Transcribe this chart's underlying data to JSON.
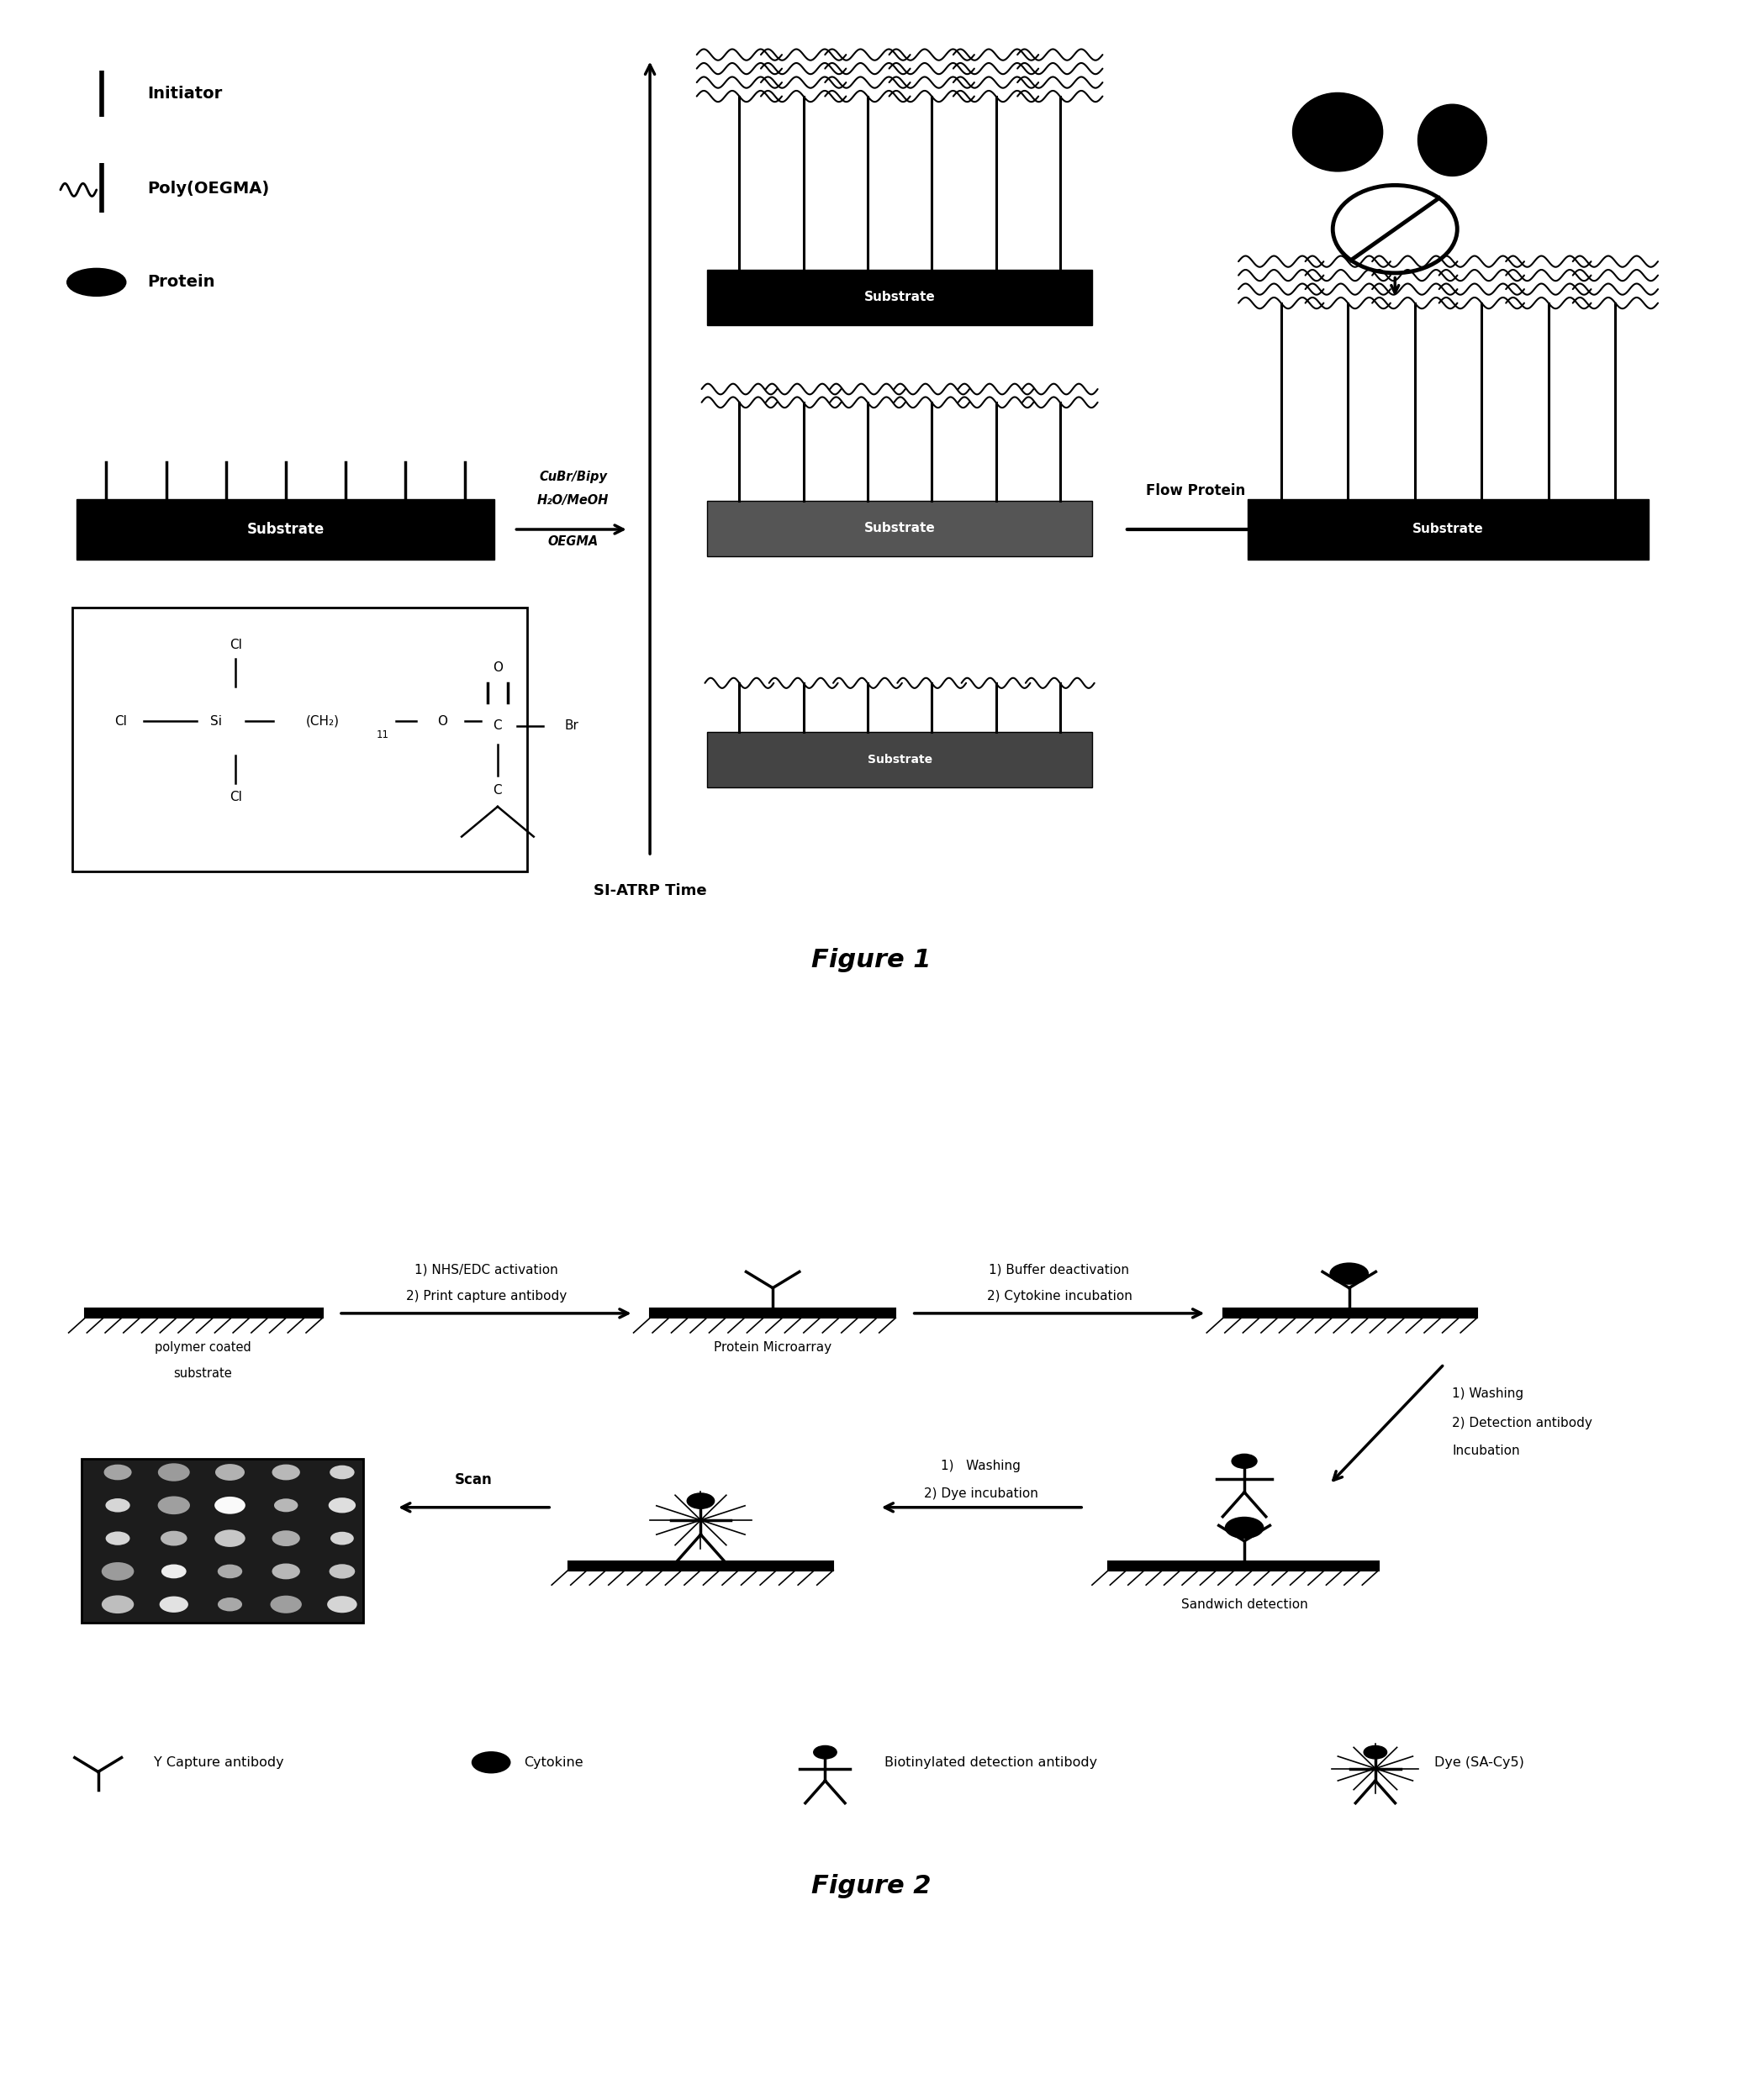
{
  "fig1_title": "Figure 1",
  "fig2_title": "Figure 2",
  "fig1_si_atrp": "SI-ATRP Time",
  "fig1_flow_protein": "Flow Protein",
  "fig1_reagents_line1": "CuBr/Bipy",
  "fig1_reagents_line2": "H₂O/MeOH",
  "fig1_reagents_line3": "OEGMA",
  "fig1_legend_initiator": "Initiator",
  "fig1_legend_poly": "Poly(OEGMA)",
  "fig1_legend_protein": "Protein",
  "fig2_arrow1_line1": "1) NHS/EDC activation",
  "fig2_arrow1_line2": "2) Print capture antibody",
  "fig2_arrow2_line1": "1) Buffer deactivation",
  "fig2_arrow2_line2": "2) Cytokine incubation",
  "fig2_diag_line1": "1) Washing",
  "fig2_diag_line2": "2) Detection antibody",
  "fig2_diag_line3": "Incubation",
  "fig2_arrow3_line1": "1)   Washing",
  "fig2_arrow3_line2": "2) Dye incubation",
  "fig2_scan": "Scan",
  "fig2_polymer_label1": "polymer coated",
  "fig2_polymer_label2": "substrate",
  "fig2_microarray_label": "Protein Microarray",
  "fig2_sandwich_label": "Sandwich detection",
  "fig2_legend_capture": "Y Capture antibody",
  "fig2_legend_cytokine": "Cytokine",
  "fig2_legend_detection": "Biotinylated detection antibody",
  "fig2_legend_dye": "Dye (SA-Cy5)",
  "bg_color": "#ffffff"
}
